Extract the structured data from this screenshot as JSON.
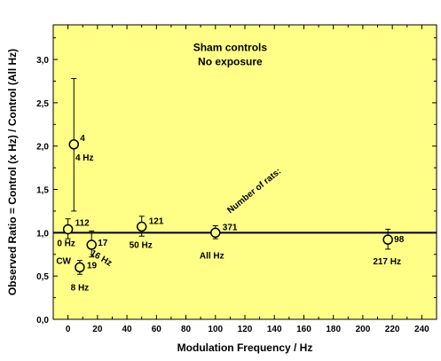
{
  "chart_data": {
    "type": "scatter",
    "title": "",
    "xlabel": "Modulation Frequency / Hz",
    "ylabel": "Observed Ratio = Control (x Hz) / Control (All Hz)",
    "xlim": [
      -10,
      250
    ],
    "ylim": [
      0.0,
      3.4
    ],
    "xticks": [
      0,
      20,
      40,
      60,
      80,
      100,
      120,
      140,
      160,
      180,
      200,
      220,
      240
    ],
    "yticks": [
      "0,0",
      "0,5",
      "1,0",
      "1,5",
      "2,0",
      "2,5",
      "3,0"
    ],
    "ytick_values": [
      0.0,
      0.5,
      1.0,
      1.5,
      2.0,
      2.5,
      3.0
    ],
    "plot_background": "#ffff88",
    "reference_line_y": 1.0,
    "points": [
      {
        "x": 0,
        "y": 1.04,
        "err_low": 0.93,
        "err_high": 1.16,
        "n": "112",
        "label": "0 Hz"
      },
      {
        "x": 4,
        "y": 2.02,
        "err_low": 1.25,
        "err_high": 2.78,
        "n": "4",
        "label": "4 Hz"
      },
      {
        "x": 8,
        "y": 0.6,
        "err_low": 0.52,
        "err_high": 0.68,
        "n": "19",
        "label": "8 Hz"
      },
      {
        "x": 16,
        "y": 0.86,
        "err_low": 0.72,
        "err_high": 1.02,
        "n": "17",
        "label": "16 Hz"
      },
      {
        "x": 50,
        "y": 1.07,
        "err_low": 0.96,
        "err_high": 1.19,
        "n": "121",
        "label": "50 Hz"
      },
      {
        "x": 100,
        "y": 1.0,
        "err_low": 0.93,
        "err_high": 1.08,
        "n": "371",
        "label": "All Hz"
      },
      {
        "x": 217,
        "y": 0.92,
        "err_low": 0.81,
        "err_high": 1.04,
        "n": "98",
        "label": "217 Hz"
      }
    ],
    "annotations": {
      "cw": "CW",
      "rats": "Number of rats:",
      "box_line1": "Sham controls",
      "box_line2": "No exposure"
    },
    "legend": "none",
    "grid": false
  }
}
